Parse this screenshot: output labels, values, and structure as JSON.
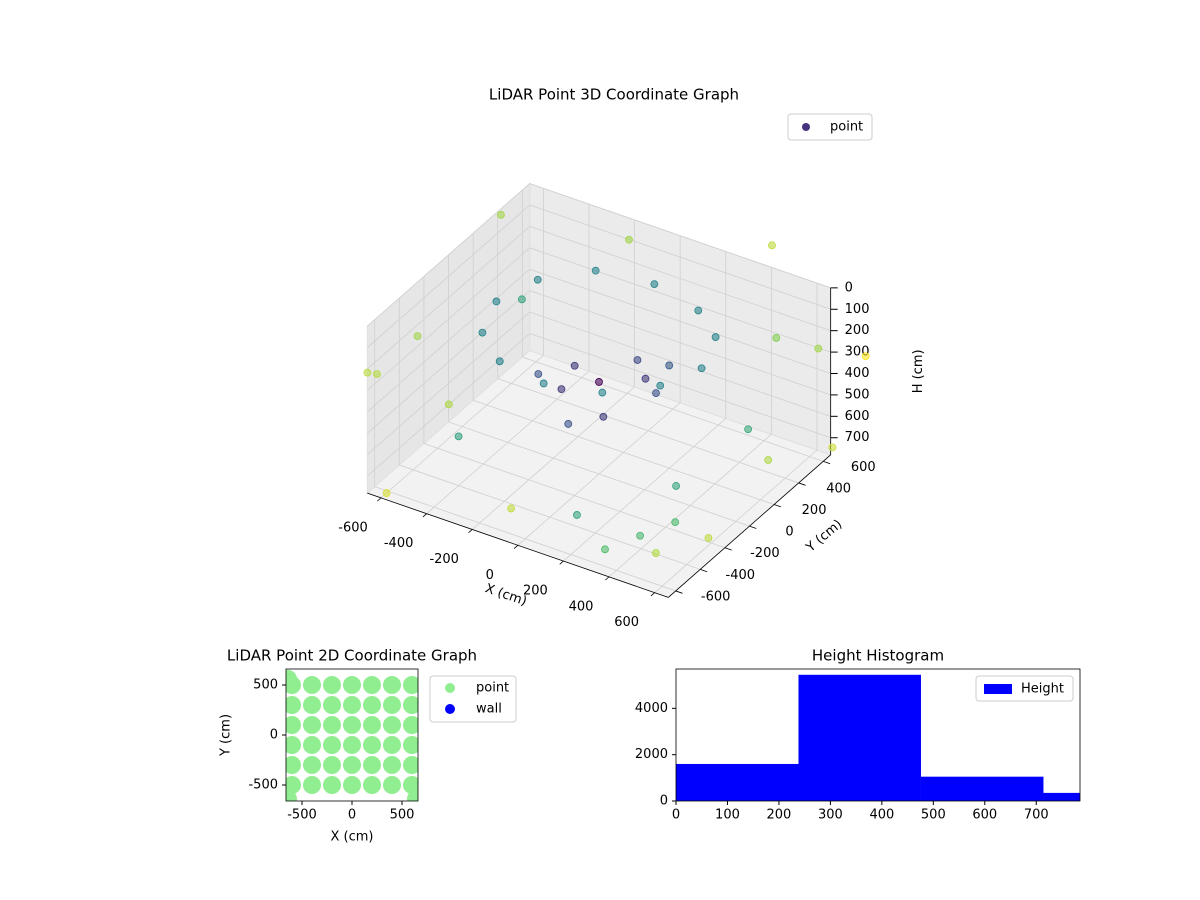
{
  "chart_data": [
    {
      "type": "scatter3d",
      "title": "LiDAR Point 3D Coordinate Graph",
      "xlabel": "X (cm)",
      "ylabel": "Y (cm)",
      "zlabel": "H (cm)",
      "xlim": [
        -660,
        660
      ],
      "ylim": [
        -660,
        660
      ],
      "zlim": [
        0,
        780
      ],
      "zinvert": true,
      "xticks": [
        -600,
        -400,
        -200,
        0,
        200,
        400,
        600
      ],
      "yticks": [
        -600,
        -400,
        -200,
        0,
        200,
        400,
        600
      ],
      "zticks": [
        0,
        100,
        200,
        300,
        400,
        500,
        600,
        700
      ],
      "colormap": "viridis",
      "grid": true,
      "legend": "upper right",
      "series": [
        {
          "name": "point",
          "color": "#46337e",
          "x": [
            450,
            390,
            225,
            0,
            -225,
            -390,
            -450,
            -390,
            -225,
            0,
            225,
            390,
            0,
            150,
            -150,
            100,
            -100,
            250,
            -250,
            50,
            0,
            200,
            800,
            -700,
            600,
            -800,
            300,
            -300,
            850,
            -850,
            700,
            -500,
            100,
            900,
            -650,
            400,
            -200,
            750,
            500,
            450,
            600,
            -500,
            350,
            550,
            -400,
            200
          ],
          "y": [
            0,
            225,
            390,
            450,
            390,
            225,
            0,
            -225,
            -390,
            -450,
            -390,
            -225,
            0,
            100,
            80,
            -150,
            -120,
            0,
            -30,
            220,
            -250,
            200,
            300,
            500,
            -650,
            -400,
            850,
            800,
            -200,
            100,
            600,
            -800,
            -900,
            500,
            -600,
            700,
            -850,
            -500,
            -300,
            -500,
            100,
            300,
            -600,
            -400,
            -400,
            -550
          ],
          "z": [
            120,
            110,
            130,
            120,
            110,
            130,
            140,
            150,
            140,
            130,
            120,
            110,
            350,
            330,
            370,
            400,
            360,
            310,
            390,
            340,
            420,
            300,
            50,
            80,
            600,
            400,
            30,
            200,
            300,
            500,
            700,
            650,
            450,
            150,
            250,
            350,
            100,
            550,
            500,
            650,
            400,
            300,
            700,
            600,
            550,
            620
          ]
        }
      ]
    },
    {
      "type": "scatter",
      "title": "LiDAR Point 2D Coordinate Graph",
      "xlabel": "X (cm)",
      "ylabel": "Y (cm)",
      "xlim": [
        -660,
        660
      ],
      "ylim": [
        -660,
        660
      ],
      "xticks": [
        -500,
        0,
        500
      ],
      "yticks": [
        -500,
        0,
        500
      ],
      "legend": "outside right",
      "series": [
        {
          "name": "point",
          "color": "#90ee90",
          "x": [
            -600,
            -400,
            -200,
            0,
            200,
            400,
            600,
            -600,
            -400,
            -200,
            0,
            200,
            400,
            600,
            -600,
            -400,
            -200,
            0,
            200,
            400,
            600,
            -600,
            -400,
            -200,
            0,
            200,
            400,
            600,
            -600,
            -400,
            -200,
            0,
            200,
            400,
            600,
            -600,
            -400,
            -200,
            0,
            200,
            400,
            600,
            -640,
            640,
            -640
          ],
          "y": [
            -500,
            -500,
            -500,
            -500,
            -500,
            -500,
            -500,
            -300,
            -300,
            -300,
            -300,
            -300,
            -300,
            -300,
            -100,
            -100,
            -100,
            -100,
            -100,
            -100,
            -100,
            100,
            100,
            100,
            100,
            100,
            100,
            100,
            300,
            300,
            300,
            300,
            300,
            300,
            300,
            500,
            500,
            500,
            500,
            500,
            500,
            500,
            560,
            -640,
            -640
          ]
        },
        {
          "name": "wall",
          "color": "#0000ff",
          "x": [],
          "y": []
        }
      ]
    },
    {
      "type": "histogram",
      "title": "Height Histogram",
      "name": "Height",
      "color": "#0000ff",
      "bins": [
        0,
        238,
        476,
        714,
        785
      ],
      "counts": [
        1600,
        5450,
        1050,
        350
      ],
      "xlim": [
        0,
        785
      ],
      "ylim": [
        0,
        5700
      ],
      "xticks": [
        0,
        100,
        200,
        300,
        400,
        500,
        600,
        700
      ],
      "yticks": [
        0,
        2000,
        4000
      ],
      "legend": "upper right"
    }
  ]
}
